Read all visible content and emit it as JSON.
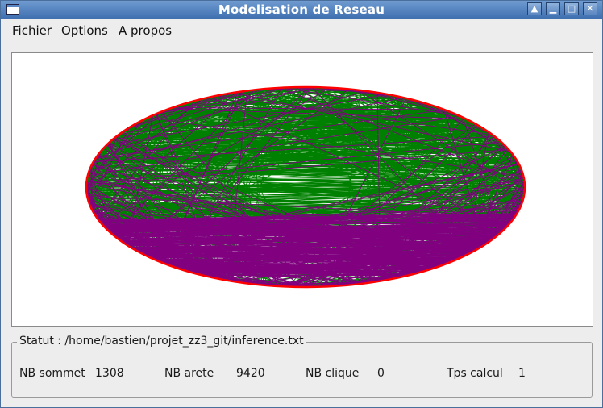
{
  "window": {
    "title": "Modelisation de Reseau"
  },
  "menu": {
    "items": [
      "Fichier",
      "Options",
      "A propos"
    ]
  },
  "graph": {
    "edge_colors": [
      "#008000",
      "#800080"
    ],
    "boundary_color": "#ff0000"
  },
  "status": {
    "legend": "Statut : /home/bastien/projet_zz3_git/inference.txt",
    "nb_sommet_label": "NB sommet",
    "nb_sommet_value": "1308",
    "nb_arete_label": "NB arete",
    "nb_arete_value": "9420",
    "nb_clique_label": "NB clique",
    "nb_clique_value": "0",
    "tps_calcul_label": "Tps calcul",
    "tps_calcul_value": "1"
  }
}
